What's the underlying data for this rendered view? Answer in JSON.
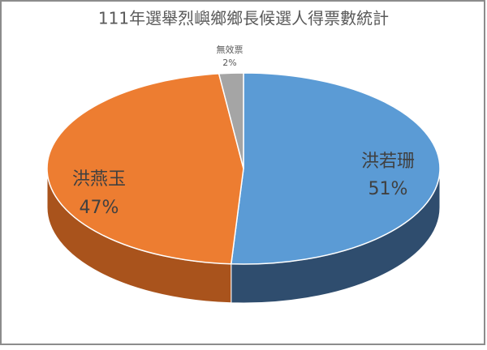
{
  "chart_data": {
    "type": "pie3d",
    "title": "111年選舉烈嶼鄉鄉長候選人得票數統計",
    "categories": [
      "洪若珊",
      "洪燕玉",
      "無效票"
    ],
    "values": [
      51,
      47,
      2
    ],
    "value_labels": [
      "51%",
      "47%",
      "2%"
    ],
    "colors": [
      "#5b9bd5",
      "#ed7d31",
      "#a5a5a5"
    ],
    "side_colors": [
      "#2f4d6e",
      "#a9531c",
      "#6e6e6e"
    ]
  }
}
